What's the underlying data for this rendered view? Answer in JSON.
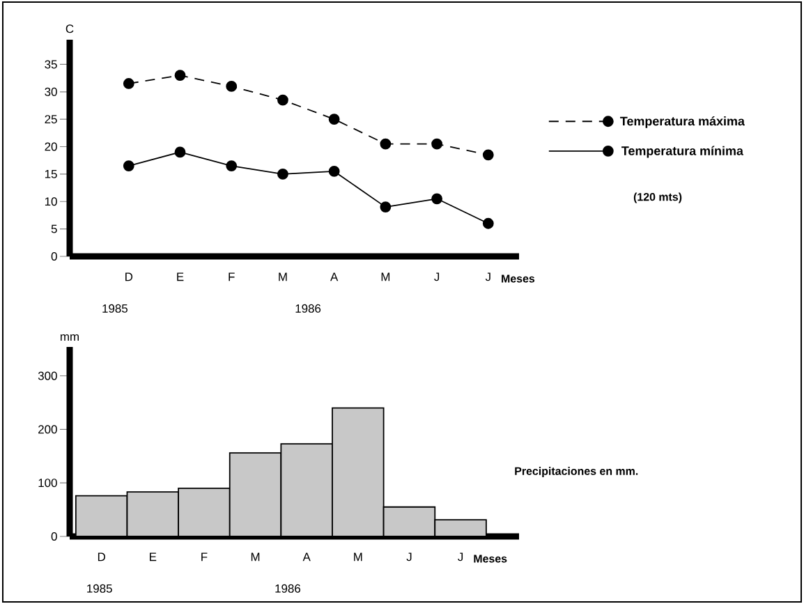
{
  "chart_data": [
    {
      "type": "line",
      "ylabel": "C",
      "xlabel": "Meses",
      "categories": [
        "D",
        "E",
        "F",
        "M",
        "A",
        "M",
        "J",
        "J"
      ],
      "series": [
        {
          "name": "Temperatura máxima",
          "color": "#000000",
          "line_style": "dashed",
          "values": [
            31.5,
            33,
            31,
            28.5,
            25,
            20.5,
            20.5,
            18.5
          ]
        },
        {
          "name": "Temperatura mínima",
          "color": "#000000",
          "line_style": "solid",
          "values": [
            16.5,
            19,
            16.5,
            15,
            15.5,
            9,
            10.5,
            6
          ]
        }
      ],
      "marker": "circle",
      "legend": "right",
      "grid": false,
      "ylim": [
        0,
        39.5
      ],
      "yticks": [
        0,
        5,
        10,
        15,
        20,
        25,
        30,
        35
      ],
      "annotations": [
        "1985",
        "1986",
        "(120 mts)"
      ]
    },
    {
      "type": "bar",
      "ylabel": "mm",
      "xlabel": "Meses",
      "categories": [
        "D",
        "E",
        "F",
        "M",
        "A",
        "M",
        "J",
        "J"
      ],
      "values": [
        76,
        83,
        90,
        156,
        173,
        240,
        55,
        31
      ],
      "color": "#c8c8c8",
      "grid": false,
      "legend": false,
      "ylim": [
        0,
        354
      ],
      "yticks": [
        0,
        100,
        200,
        300
      ],
      "annotations": [
        "1985",
        "1986",
        "Precipitaciones en mm."
      ]
    }
  ]
}
